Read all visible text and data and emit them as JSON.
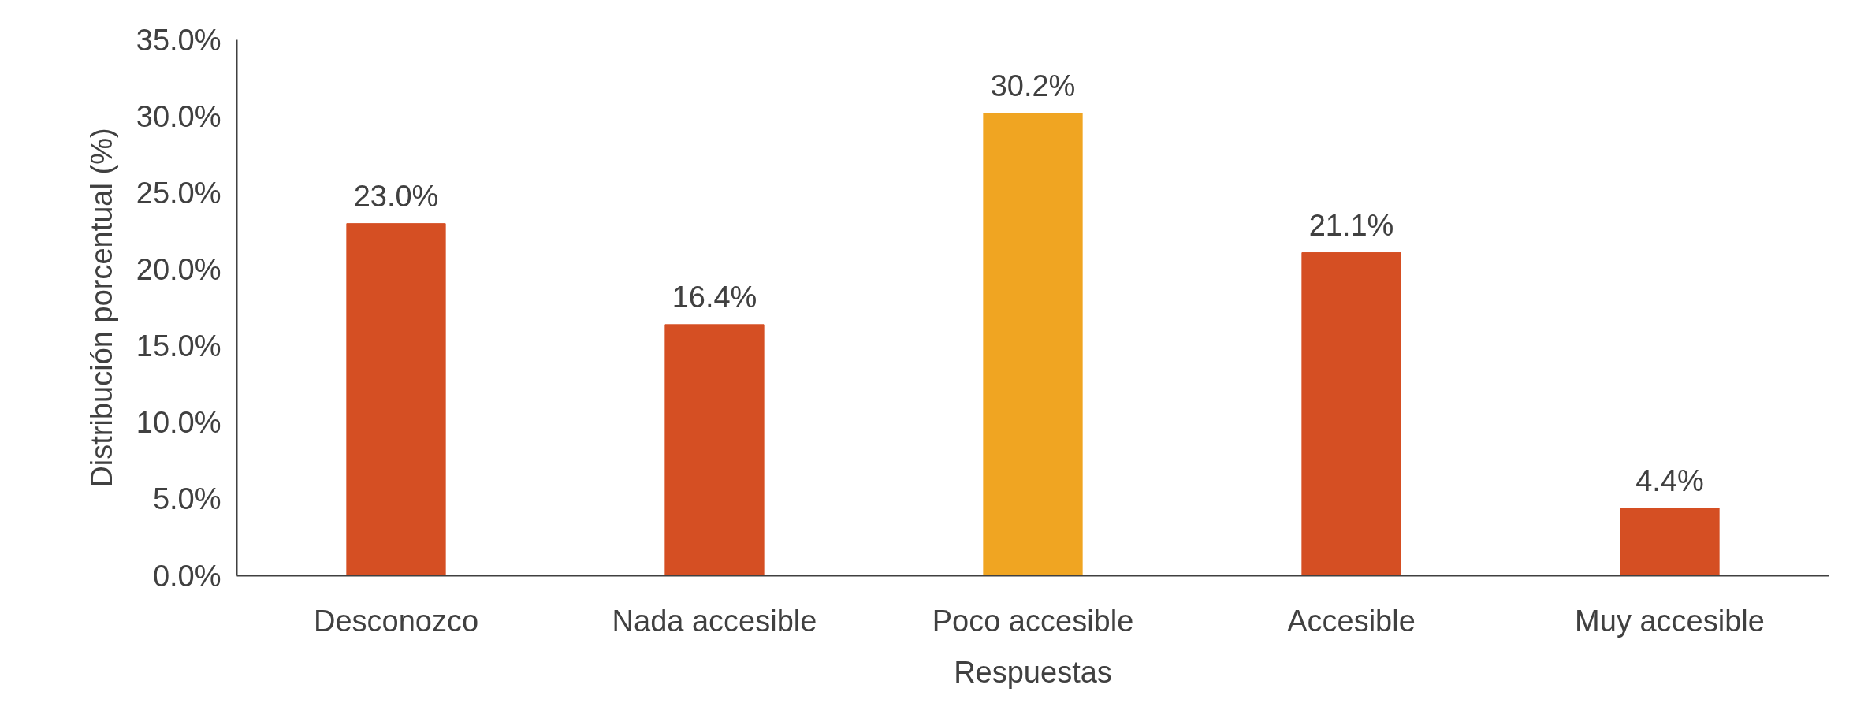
{
  "chart_data": {
    "type": "bar",
    "xlabel": "Respuestas",
    "ylabel": "Distribución porcentual (%)",
    "categories": [
      "Desconozco",
      "Nada accesible",
      "Poco accesible",
      "Accesible",
      "Muy accesible"
    ],
    "values": [
      23.0,
      16.4,
      30.2,
      21.1,
      4.4
    ],
    "colors": [
      "#d54f23",
      "#d54f23",
      "#f0a522",
      "#d54f23",
      "#d54f23"
    ],
    "value_labels": [
      "23.0%",
      "16.4%",
      "30.2%",
      "21.1%",
      "4.4%"
    ],
    "ylim": [
      0,
      35
    ],
    "yticks": [
      {
        "value": 0,
        "label": "0.0%"
      },
      {
        "value": 5,
        "label": "5.0%"
      },
      {
        "value": 10,
        "label": "10.0%"
      },
      {
        "value": 15,
        "label": "15.0%"
      },
      {
        "value": 20,
        "label": "20.0%"
      },
      {
        "value": 25,
        "label": "25.0%"
      },
      {
        "value": 30,
        "label": "30.0%"
      },
      {
        "value": 35,
        "label": "35.0%"
      }
    ],
    "grid": false
  }
}
